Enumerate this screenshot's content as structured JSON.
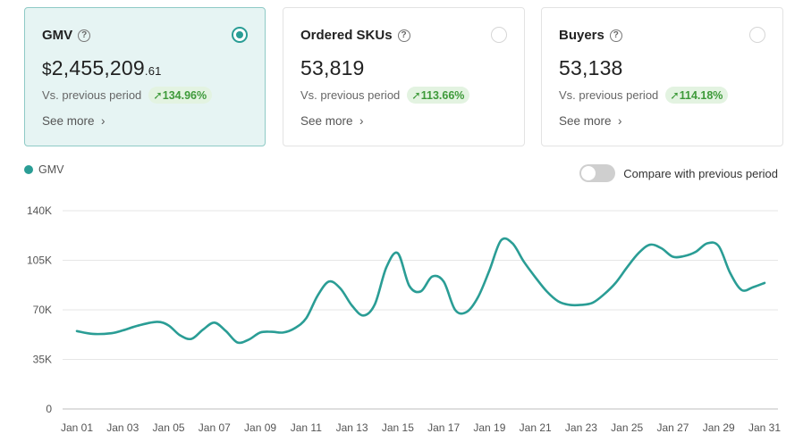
{
  "cards": [
    {
      "title": "GMV",
      "value_currency": "$",
      "value_main": "2,455,209",
      "value_cents": ".61",
      "compare_label": "Vs. previous period",
      "change": "134.96%",
      "see_more": "See more",
      "selected": true
    },
    {
      "title": "Ordered SKUs",
      "value_main": "53,819",
      "compare_label": "Vs. previous period",
      "change": "113.66%",
      "see_more": "See more",
      "selected": false
    },
    {
      "title": "Buyers",
      "value_main": "53,138",
      "compare_label": "Vs. previous period",
      "change": "114.18%",
      "see_more": "See more",
      "selected": false
    }
  ],
  "compare_toggle": {
    "label": "Compare with previous period",
    "on": false
  },
  "icons": {
    "help": "question-circle-icon",
    "arrow": "arrow-up-icon",
    "chevron": "chevron-right-icon"
  },
  "colors": {
    "accent": "#2a9d95",
    "positive": "#3e9a3a"
  },
  "chart_data": {
    "type": "line",
    "series": [
      {
        "name": "GMV",
        "color": "#2a9d95",
        "points": [
          [
            1,
            55000
          ],
          [
            1.7,
            53000
          ],
          [
            2.5,
            53500
          ],
          [
            3,
            55500
          ],
          [
            3.7,
            59000
          ],
          [
            4.5,
            61500
          ],
          [
            5,
            59000
          ],
          [
            5.5,
            52000
          ],
          [
            6,
            49500
          ],
          [
            6.5,
            56000
          ],
          [
            7,
            61000
          ],
          [
            7.5,
            55000
          ],
          [
            8,
            47000
          ],
          [
            8.5,
            49000
          ],
          [
            9,
            54000
          ],
          [
            9.5,
            54500
          ],
          [
            10,
            54000
          ],
          [
            10.5,
            57000
          ],
          [
            11,
            64000
          ],
          [
            11.5,
            80000
          ],
          [
            12,
            90000
          ],
          [
            12.5,
            85000
          ],
          [
            13,
            73000
          ],
          [
            13.5,
            66000
          ],
          [
            14,
            74000
          ],
          [
            14.5,
            100000
          ],
          [
            15,
            110000
          ],
          [
            15.5,
            87000
          ],
          [
            16,
            83000
          ],
          [
            16.5,
            93500
          ],
          [
            17,
            90000
          ],
          [
            17.5,
            70000
          ],
          [
            18,
            68500
          ],
          [
            18.5,
            79000
          ],
          [
            19,
            98000
          ],
          [
            19.5,
            119000
          ],
          [
            20,
            117000
          ],
          [
            20.5,
            104000
          ],
          [
            21,
            93000
          ],
          [
            21.5,
            83000
          ],
          [
            22,
            76000
          ],
          [
            22.5,
            73500
          ],
          [
            23,
            73500
          ],
          [
            23.5,
            75000
          ],
          [
            24,
            81000
          ],
          [
            24.5,
            89000
          ],
          [
            25,
            100000
          ],
          [
            25.5,
            110000
          ],
          [
            26,
            116000
          ],
          [
            26.5,
            113500
          ],
          [
            27,
            107500
          ],
          [
            27.5,
            108000
          ],
          [
            28,
            111000
          ],
          [
            28.5,
            117000
          ],
          [
            29,
            115000
          ],
          [
            29.5,
            96000
          ],
          [
            30,
            84000
          ],
          [
            30.5,
            86000
          ],
          [
            31,
            89000
          ]
        ]
      }
    ],
    "legend": [
      "GMV"
    ],
    "x_ticks": [
      "Jan 01",
      "Jan 03",
      "Jan 05",
      "Jan 07",
      "Jan 09",
      "Jan 11",
      "Jan 13",
      "Jan 15",
      "Jan 17",
      "Jan 19",
      "Jan 21",
      "Jan 23",
      "Jan 25",
      "Jan 27",
      "Jan 29",
      "Jan 31"
    ],
    "x_tick_days": [
      1,
      3,
      5,
      7,
      9,
      11,
      13,
      15,
      17,
      19,
      21,
      23,
      25,
      27,
      29,
      31
    ],
    "y_ticks": [
      "0",
      "35K",
      "70K",
      "105K",
      "140K"
    ],
    "y_tick_values": [
      0,
      35000,
      70000,
      105000,
      140000
    ],
    "xlim": [
      1,
      31
    ],
    "ylim": [
      0,
      140000
    ],
    "grid": true,
    "legend_position": "top-left"
  }
}
